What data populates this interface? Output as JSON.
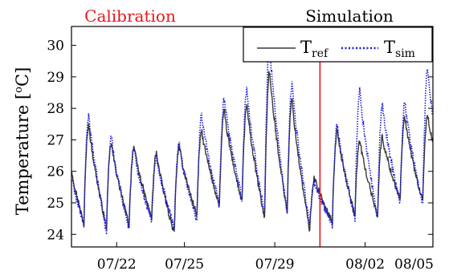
{
  "chart_data": {
    "type": "line",
    "ylabel": "Temperature [°C]",
    "ylabel_parts": {
      "base": "Temperature [",
      "superscript": "o",
      "tail": "C]"
    },
    "regions": [
      {
        "label": "Calibration",
        "color": "#e8141b"
      },
      {
        "label": "Simulation",
        "color": "#000000"
      }
    ],
    "divider": {
      "x": "07/31",
      "color": "#e8141b"
    },
    "x_range": [
      "07/20",
      "08/05"
    ],
    "x_ticks": [
      "07/22",
      "07/25",
      "07/29",
      "08/02",
      "08/05"
    ],
    "y_ticks": [
      24,
      25,
      26,
      27,
      28,
      29,
      30
    ],
    "ylim": [
      23.6,
      30.6
    ],
    "grid": false,
    "legend_position": "top-right",
    "series": [
      {
        "name": "T_ref",
        "legend": {
          "base": "T",
          "sub": "ref"
        },
        "color": "#3a3a3a",
        "style": "solid",
        "daily_min": [
          24.6,
          24.3,
          24.2,
          24.3,
          24.5,
          24.0,
          24.6,
          24.9,
          25.0,
          24.5,
          24.7,
          24.1,
          24.4,
          24.6,
          24.6,
          25.1,
          25.0,
          25.3
        ],
        "daily_max": [
          27.1,
          27.5,
          26.9,
          26.8,
          26.6,
          26.8,
          27.3,
          27.9,
          28.1,
          29.2,
          28.3,
          25.8,
          27.3,
          27.0,
          27.1,
          27.7,
          27.8,
          28.1
        ]
      },
      {
        "name": "T_sim",
        "legend": {
          "base": "T",
          "sub": "sim"
        },
        "color": "#1a1ad8",
        "style": "dotted",
        "daily_min": [
          25.1,
          24.3,
          24.1,
          24.2,
          24.4,
          24.2,
          24.4,
          24.9,
          25.1,
          24.6,
          24.6,
          24.3,
          24.3,
          24.5,
          24.5,
          25.0,
          24.9,
          25.2
        ],
        "daily_max": [
          26.7,
          27.8,
          27.1,
          26.7,
          26.5,
          26.9,
          27.8,
          28.3,
          28.6,
          30.1,
          28.8,
          25.7,
          27.5,
          28.6,
          28.1,
          28.2,
          29.3,
          29.0
        ]
      }
    ]
  }
}
